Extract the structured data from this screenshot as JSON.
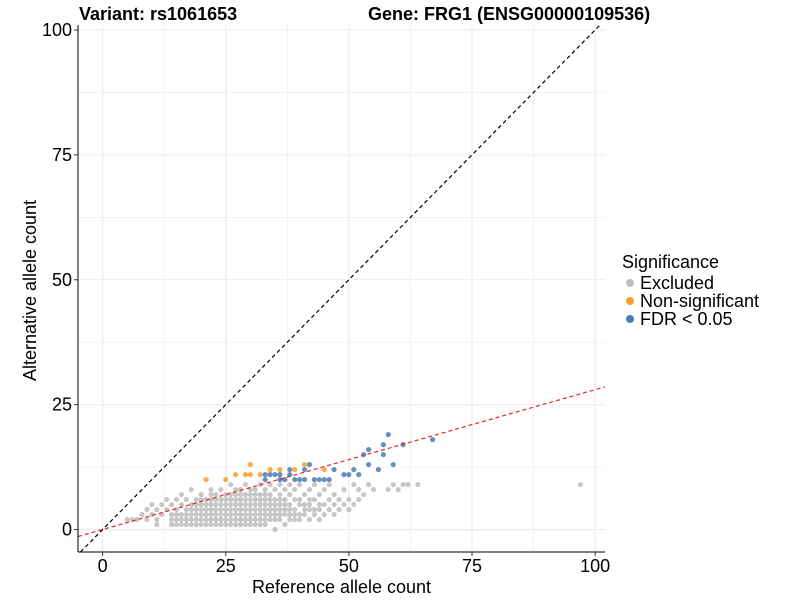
{
  "title_left": "Variant: rs1061653",
  "title_right": "Gene: FRG1 (ENSG00000109536)",
  "colors": {
    "excluded": "#bdbdbd",
    "non_significant": "#f7a028",
    "fdr": "#4a7eb5",
    "identity_line": "#000000",
    "fit_line": "#e8262a",
    "grid": "#ebebeb"
  },
  "legend": {
    "title": "Significance",
    "items": [
      {
        "label": "Excluded",
        "color": "#bdbdbd"
      },
      {
        "label": "Non-significant",
        "color": "#f7a028"
      },
      {
        "label": "FDR < 0.05",
        "color": "#4a7eb5"
      }
    ]
  },
  "chart_data": {
    "type": "scatter",
    "xlabel": "Reference allele count",
    "ylabel": "Alternative allele count",
    "xlim": [
      -5,
      102
    ],
    "ylim": [
      -4.5,
      101
    ],
    "xticks": [
      0,
      25,
      50,
      75,
      100
    ],
    "yticks": [
      0,
      25,
      50,
      75,
      100
    ],
    "grid": true,
    "legend_position": "right",
    "reference_lines": [
      {
        "name": "identity",
        "style": "dashed",
        "color": "#000000",
        "slope": 1,
        "intercept": 0
      },
      {
        "name": "fit",
        "style": "dashed",
        "color": "#e8262a",
        "slope": 0.28,
        "intercept": 0
      }
    ],
    "series": [
      {
        "name": "Excluded",
        "color": "#bdbdbd",
        "points": [
          [
            5,
            2
          ],
          [
            6,
            2
          ],
          [
            7,
            2
          ],
          [
            8,
            3
          ],
          [
            9,
            2
          ],
          [
            9,
            4
          ],
          [
            10,
            3
          ],
          [
            10,
            5
          ],
          [
            11,
            1
          ],
          [
            11,
            2
          ],
          [
            11,
            4
          ],
          [
            12,
            3
          ],
          [
            12,
            5
          ],
          [
            13,
            4
          ],
          [
            13,
            6
          ],
          [
            14,
            1
          ],
          [
            14,
            2
          ],
          [
            14,
            3
          ],
          [
            14,
            5
          ],
          [
            15,
            1
          ],
          [
            15,
            2
          ],
          [
            15,
            3
          ],
          [
            15,
            4
          ],
          [
            15,
            6
          ],
          [
            16,
            1
          ],
          [
            16,
            2
          ],
          [
            16,
            3
          ],
          [
            16,
            5
          ],
          [
            16,
            7
          ],
          [
            17,
            1
          ],
          [
            17,
            2
          ],
          [
            17,
            3
          ],
          [
            17,
            4
          ],
          [
            17,
            6
          ],
          [
            18,
            1
          ],
          [
            18,
            2
          ],
          [
            18,
            3
          ],
          [
            18,
            4
          ],
          [
            18,
            5
          ],
          [
            18,
            8
          ],
          [
            19,
            1
          ],
          [
            19,
            2
          ],
          [
            19,
            3
          ],
          [
            19,
            4
          ],
          [
            19,
            5
          ],
          [
            19,
            6
          ],
          [
            20,
            1
          ],
          [
            20,
            2
          ],
          [
            20,
            3
          ],
          [
            20,
            4
          ],
          [
            20,
            5
          ],
          [
            20,
            6
          ],
          [
            20,
            7
          ],
          [
            21,
            1
          ],
          [
            21,
            2
          ],
          [
            21,
            3
          ],
          [
            21,
            4
          ],
          [
            21,
            5
          ],
          [
            21,
            6
          ],
          [
            22,
            1
          ],
          [
            22,
            2
          ],
          [
            22,
            3
          ],
          [
            22,
            4
          ],
          [
            22,
            5
          ],
          [
            22,
            6
          ],
          [
            22,
            7
          ],
          [
            22,
            8
          ],
          [
            23,
            1
          ],
          [
            23,
            2
          ],
          [
            23,
            3
          ],
          [
            23,
            4
          ],
          [
            23,
            5
          ],
          [
            23,
            6
          ],
          [
            23,
            7
          ],
          [
            24,
            1
          ],
          [
            24,
            2
          ],
          [
            24,
            3
          ],
          [
            24,
            4
          ],
          [
            24,
            5
          ],
          [
            24,
            6
          ],
          [
            24,
            8
          ],
          [
            25,
            1
          ],
          [
            25,
            2
          ],
          [
            25,
            3
          ],
          [
            25,
            4
          ],
          [
            25,
            5
          ],
          [
            25,
            6
          ],
          [
            25,
            7
          ],
          [
            26,
            1
          ],
          [
            26,
            2
          ],
          [
            26,
            3
          ],
          [
            26,
            4
          ],
          [
            26,
            5
          ],
          [
            26,
            6
          ],
          [
            26,
            7
          ],
          [
            26,
            9
          ],
          [
            27,
            1
          ],
          [
            27,
            2
          ],
          [
            27,
            3
          ],
          [
            27,
            4
          ],
          [
            27,
            5
          ],
          [
            27,
            6
          ],
          [
            27,
            7
          ],
          [
            27,
            8
          ],
          [
            28,
            1
          ],
          [
            28,
            2
          ],
          [
            28,
            3
          ],
          [
            28,
            4
          ],
          [
            28,
            5
          ],
          [
            28,
            6
          ],
          [
            28,
            7
          ],
          [
            28,
            8
          ],
          [
            29,
            1
          ],
          [
            29,
            2
          ],
          [
            29,
            3
          ],
          [
            29,
            4
          ],
          [
            29,
            5
          ],
          [
            29,
            6
          ],
          [
            29,
            7
          ],
          [
            29,
            9
          ],
          [
            30,
            1
          ],
          [
            30,
            2
          ],
          [
            30,
            3
          ],
          [
            30,
            4
          ],
          [
            30,
            5
          ],
          [
            30,
            6
          ],
          [
            30,
            7
          ],
          [
            30,
            8
          ],
          [
            31,
            1
          ],
          [
            31,
            2
          ],
          [
            31,
            3
          ],
          [
            31,
            4
          ],
          [
            31,
            5
          ],
          [
            31,
            6
          ],
          [
            31,
            7
          ],
          [
            31,
            8
          ],
          [
            32,
            1
          ],
          [
            32,
            2
          ],
          [
            32,
            3
          ],
          [
            32,
            4
          ],
          [
            32,
            5
          ],
          [
            32,
            6
          ],
          [
            32,
            7
          ],
          [
            32,
            9
          ],
          [
            33,
            1
          ],
          [
            33,
            2
          ],
          [
            33,
            3
          ],
          [
            33,
            4
          ],
          [
            33,
            5
          ],
          [
            33,
            6
          ],
          [
            33,
            7
          ],
          [
            33,
            8
          ],
          [
            34,
            2
          ],
          [
            34,
            3
          ],
          [
            34,
            4
          ],
          [
            34,
            5
          ],
          [
            34,
            6
          ],
          [
            34,
            7
          ],
          [
            34,
            9
          ],
          [
            35,
            0
          ],
          [
            35,
            2
          ],
          [
            35,
            3
          ],
          [
            35,
            4
          ],
          [
            35,
            5
          ],
          [
            35,
            6
          ],
          [
            35,
            8
          ],
          [
            36,
            2
          ],
          [
            36,
            3
          ],
          [
            36,
            4
          ],
          [
            36,
            5
          ],
          [
            36,
            6
          ],
          [
            36,
            7
          ],
          [
            36,
            9
          ],
          [
            37,
            1
          ],
          [
            37,
            3
          ],
          [
            37,
            4
          ],
          [
            37,
            5
          ],
          [
            37,
            6
          ],
          [
            37,
            8
          ],
          [
            38,
            2
          ],
          [
            38,
            3
          ],
          [
            38,
            4
          ],
          [
            38,
            5
          ],
          [
            38,
            7
          ],
          [
            38,
            9
          ],
          [
            39,
            2
          ],
          [
            39,
            3
          ],
          [
            39,
            4
          ],
          [
            39,
            6
          ],
          [
            39,
            8
          ],
          [
            40,
            2
          ],
          [
            40,
            3
          ],
          [
            40,
            5
          ],
          [
            40,
            6
          ],
          [
            40,
            9
          ],
          [
            41,
            3
          ],
          [
            41,
            4
          ],
          [
            41,
            5
          ],
          [
            41,
            7
          ],
          [
            42,
            2
          ],
          [
            42,
            4
          ],
          [
            42,
            5
          ],
          [
            42,
            6
          ],
          [
            42,
            8
          ],
          [
            43,
            3
          ],
          [
            43,
            4
          ],
          [
            43,
            6
          ],
          [
            43,
            9
          ],
          [
            44,
            2
          ],
          [
            44,
            4
          ],
          [
            44,
            5
          ],
          [
            44,
            7
          ],
          [
            45,
            3
          ],
          [
            45,
            5
          ],
          [
            45,
            8
          ],
          [
            46,
            4
          ],
          [
            46,
            6
          ],
          [
            46,
            9
          ],
          [
            47,
            3
          ],
          [
            47,
            5
          ],
          [
            47,
            7
          ],
          [
            48,
            4
          ],
          [
            48,
            6
          ],
          [
            49,
            5
          ],
          [
            49,
            8
          ],
          [
            50,
            4
          ],
          [
            50,
            6
          ],
          [
            51,
            5
          ],
          [
            51,
            9
          ],
          [
            52,
            6
          ],
          [
            52,
            8
          ],
          [
            53,
            7
          ],
          [
            54,
            9
          ],
          [
            55,
            8
          ],
          [
            58,
            8
          ],
          [
            59,
            9
          ],
          [
            60,
            8
          ],
          [
            61,
            9
          ],
          [
            62,
            9
          ],
          [
            64,
            9
          ],
          [
            97,
            9
          ]
        ]
      },
      {
        "name": "Non-significant",
        "color": "#f7a028",
        "points": [
          [
            21,
            10
          ],
          [
            25,
            10
          ],
          [
            27,
            11
          ],
          [
            29,
            11
          ],
          [
            30,
            13
          ],
          [
            30,
            11
          ],
          [
            32,
            11
          ],
          [
            34,
            12
          ],
          [
            36,
            12
          ],
          [
            39,
            12
          ],
          [
            41,
            13
          ],
          [
            45,
            12
          ]
        ]
      },
      {
        "name": "FDR < 0.05",
        "color": "#4a7eb5",
        "points": [
          [
            33,
            10
          ],
          [
            33,
            11
          ],
          [
            34,
            11
          ],
          [
            35,
            11
          ],
          [
            36,
            10
          ],
          [
            36,
            11
          ],
          [
            37,
            10
          ],
          [
            38,
            11
          ],
          [
            38,
            12
          ],
          [
            39,
            10
          ],
          [
            40,
            10
          ],
          [
            41,
            10
          ],
          [
            41,
            12
          ],
          [
            42,
            13
          ],
          [
            43,
            10
          ],
          [
            44,
            10
          ],
          [
            45,
            10
          ],
          [
            46,
            10
          ],
          [
            47,
            12
          ],
          [
            49,
            11
          ],
          [
            50,
            11
          ],
          [
            51,
            12
          ],
          [
            52,
            11
          ],
          [
            53,
            15
          ],
          [
            54,
            13
          ],
          [
            54,
            16
          ],
          [
            56,
            12
          ],
          [
            57,
            15
          ],
          [
            57,
            17
          ],
          [
            58,
            19
          ],
          [
            59,
            13
          ],
          [
            61,
            17
          ],
          [
            67,
            18
          ]
        ]
      }
    ]
  }
}
